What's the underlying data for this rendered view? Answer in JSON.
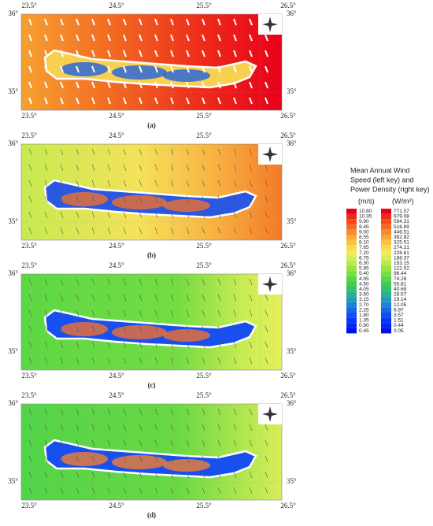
{
  "panels": [
    {
      "label": "(a)",
      "x_ticks": [
        "23.5°",
        "24.5°",
        "25.5°",
        "26.5°"
      ],
      "y_ticks": [
        "36°",
        "35°"
      ]
    },
    {
      "label": "(b)",
      "x_ticks": [
        "23.5°",
        "24.5°",
        "25.5°",
        "26.5°"
      ],
      "y_ticks": [
        "36°",
        "35°"
      ]
    },
    {
      "label": "(c)",
      "x_ticks": [
        "23.5°",
        "24.5°",
        "25.5°",
        "26.5°"
      ],
      "y_ticks": [
        "36°",
        "35°"
      ]
    },
    {
      "label": "(d)",
      "x_ticks": [
        "23.5°",
        "24.5°",
        "25.5°",
        "26.5°"
      ],
      "y_ticks": [
        "36°",
        "35°"
      ]
    }
  ],
  "legend": {
    "title_lines": [
      "Mean Annual Wind",
      "Speed (left key) and",
      "Power Density (right key)"
    ],
    "left_unit": "(m/s)",
    "right_unit": "(W/m²)",
    "left_key": [
      "10.80",
      "10.35",
      "9.90",
      "9.45",
      "9.00",
      "8.55",
      "8.10",
      "7.65",
      "7.20",
      "6.75",
      "6.30",
      "5.85",
      "5.40",
      "4.95",
      "4.50",
      "4.05",
      "3.60",
      "3.15",
      "2.70",
      "2.25",
      "1.80",
      "1.35",
      "0.90",
      "0.45"
    ],
    "right_key": [
      "771.57",
      "679.08",
      "594.31",
      "516.89",
      "446.51",
      "382.82",
      "325.51",
      "274.21",
      "228.61",
      "188.37",
      "153.15",
      "122.52",
      "96.44",
      "74.28",
      "55.81",
      "40.68",
      "28.57",
      "19.14",
      "12.05",
      "6.97",
      "3.57",
      "1.51",
      "0.44",
      "0.05"
    ]
  }
}
